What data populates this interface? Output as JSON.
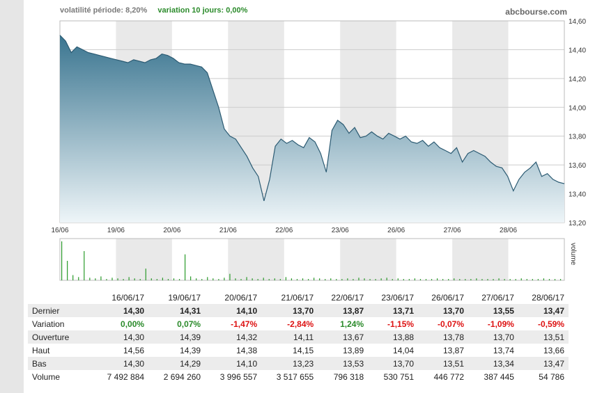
{
  "header": {
    "volatility": "volatilité période: 8,20%",
    "variation": "variation 10 jours: 0,00%",
    "brand": "abcbourse.com"
  },
  "chart_data": {
    "type": "area",
    "x_labels": [
      "16/06",
      "19/06",
      "20/06",
      "21/06",
      "22/06",
      "23/06",
      "26/06",
      "27/06",
      "28/06"
    ],
    "y_ticks": [
      "14,60",
      "14,40",
      "14,20",
      "14,00",
      "13,80",
      "13,60",
      "13,40",
      "13,20"
    ],
    "ylim": [
      13.2,
      14.6
    ],
    "volume_axis_label": "volume",
    "price_series": [
      14.5,
      14.46,
      14.38,
      14.42,
      14.4,
      14.38,
      14.37,
      14.36,
      14.35,
      14.34,
      14.33,
      14.32,
      14.31,
      14.33,
      14.32,
      14.31,
      14.33,
      14.34,
      14.37,
      14.36,
      14.34,
      14.31,
      14.3,
      14.3,
      14.29,
      14.28,
      14.24,
      14.12,
      14.0,
      13.85,
      13.8,
      13.78,
      13.72,
      13.66,
      13.58,
      13.52,
      13.35,
      13.5,
      13.73,
      13.78,
      13.75,
      13.77,
      13.74,
      13.72,
      13.79,
      13.76,
      13.68,
      13.55,
      13.84,
      13.91,
      13.88,
      13.82,
      13.86,
      13.79,
      13.8,
      13.83,
      13.8,
      13.78,
      13.82,
      13.8,
      13.78,
      13.8,
      13.76,
      13.75,
      13.77,
      13.73,
      13.76,
      13.72,
      13.7,
      13.68,
      13.72,
      13.62,
      13.68,
      13.7,
      13.68,
      13.66,
      13.62,
      13.59,
      13.58,
      13.52,
      13.42,
      13.5,
      13.55,
      13.58,
      13.62,
      13.52,
      13.54,
      13.5,
      13.48,
      13.47
    ],
    "volume_series": [
      60,
      30,
      8,
      5,
      45,
      4,
      3,
      6,
      2,
      4,
      3,
      2,
      5,
      3,
      2,
      18,
      3,
      2,
      4,
      2,
      3,
      2,
      40,
      6,
      3,
      2,
      5,
      3,
      2,
      4,
      10,
      3,
      2,
      5,
      3,
      2,
      4,
      2,
      3,
      2,
      5,
      3,
      2,
      3,
      2,
      4,
      3,
      2,
      3,
      2,
      2,
      3,
      2,
      4,
      3,
      2,
      2,
      3,
      4,
      2,
      3,
      2,
      2,
      3,
      2,
      2,
      2,
      3,
      2,
      2,
      3,
      2,
      2,
      2,
      3,
      2,
      2,
      2,
      3,
      2,
      2,
      2,
      3,
      2,
      2,
      2,
      3,
      2,
      2,
      2
    ],
    "colors": {
      "line": "#2b5a72",
      "fill_top": "#3a7590",
      "fill_bottom": "#eef5f8",
      "volume": "#2a9a2a",
      "grid": "#cccccc",
      "band": "#e9e9e9"
    }
  },
  "table": {
    "dates": [
      "16/06/17",
      "19/06/17",
      "20/06/17",
      "21/06/17",
      "22/06/17",
      "23/06/17",
      "26/06/17",
      "27/06/17",
      "28/06/17"
    ],
    "rows": [
      {
        "label": "Dernier",
        "values": [
          "14,30",
          "14,31",
          "14,10",
          "13,70",
          "13,87",
          "13,71",
          "13,70",
          "13,55",
          "13,47"
        ]
      },
      {
        "label": "Variation",
        "values": [
          "0,00%",
          "0,07%",
          "-1,47%",
          "-2,84%",
          "1,24%",
          "-1,15%",
          "-0,07%",
          "-1,09%",
          "-0,59%"
        ]
      },
      {
        "label": "Ouverture",
        "values": [
          "14,30",
          "14,39",
          "14,32",
          "14,11",
          "13,67",
          "13,88",
          "13,78",
          "13,70",
          "13,51"
        ]
      },
      {
        "label": "Haut",
        "values": [
          "14,56",
          "14,39",
          "14,38",
          "14,15",
          "13,89",
          "14,04",
          "13,87",
          "13,74",
          "13,66"
        ]
      },
      {
        "label": "Bas",
        "values": [
          "14,30",
          "14,29",
          "14,10",
          "13,23",
          "13,53",
          "13,70",
          "13,51",
          "13,34",
          "13,47"
        ]
      },
      {
        "label": "Volume",
        "values": [
          "7 492 884",
          "2 694 260",
          "3 996 557",
          "3 517 655",
          "796 318",
          "530 751",
          "446 772",
          "387 445",
          "54 786"
        ]
      }
    ]
  }
}
